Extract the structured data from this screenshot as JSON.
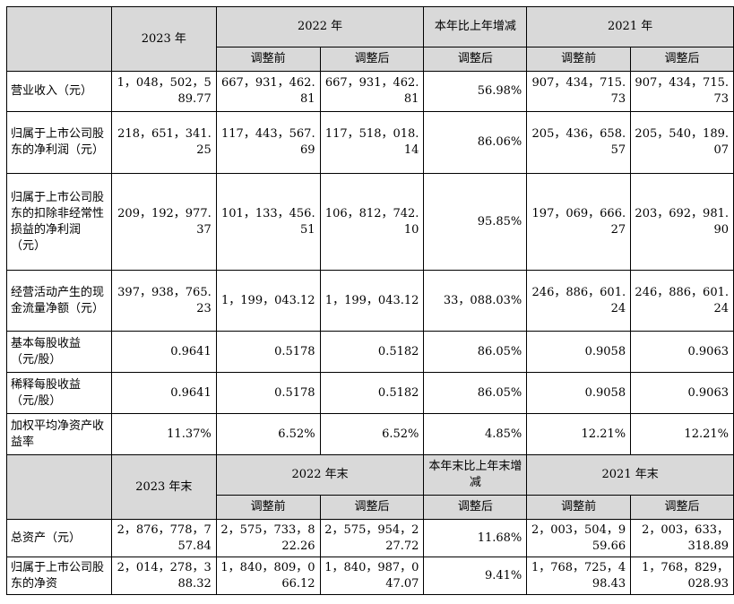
{
  "header1": {
    "y2023": "2023 年",
    "y2022": "2022 年",
    "change": "本年比上年增减",
    "y2021": "2021 年",
    "before": "调整前",
    "after": "调整后",
    "change_after": "调整后"
  },
  "rows1": [
    {
      "label": "营业收入（元）",
      "v2023": "1，048，502，589.77",
      "v2022b": "667，931，462.81",
      "v2022a": "667，931，462.81",
      "chg": "56.98%",
      "v2021b": "907，434，715.73",
      "v2021a": "907，434，715.73"
    },
    {
      "label": "归属于上市公司股东的净利润（元）",
      "v2023": "218，651，341.25",
      "v2022b": "117，443，567.69",
      "v2022a": "117，518，018.14",
      "chg": "86.06%",
      "v2021b": "205，436，658.57",
      "v2021a": "205，540，189.07"
    },
    {
      "label": "归属于上市公司股东的扣除非经常性损益的净利润（元）",
      "v2023": "209，192，977.37",
      "v2022b": "101，133，456.51",
      "v2022a": "106，812，742.10",
      "chg": "95.85%",
      "v2021b": "197，069，666.27",
      "v2021a": "203，692，981.90"
    },
    {
      "label": "经营活动产生的现金流量净额（元）",
      "v2023": "397，938，765.23",
      "v2022b": "1，199，043.12",
      "v2022a": "1，199，043.12",
      "chg": "33，088.03%",
      "v2021b": "246，886，601.24",
      "v2021a": "246，886，601.24"
    },
    {
      "label": "基本每股收益（元/股）",
      "v2023": "0.9641",
      "v2022b": "0.5178",
      "v2022a": "0.5182",
      "chg": "86.05%",
      "v2021b": "0.9058",
      "v2021a": "0.9063"
    },
    {
      "label": "稀释每股收益（元/股）",
      "v2023": "0.9641",
      "v2022b": "0.5178",
      "v2022a": "0.5182",
      "chg": "86.05%",
      "v2021b": "0.9058",
      "v2021a": "0.9063"
    },
    {
      "label": "加权平均净资产收益率",
      "v2023": "11.37%",
      "v2022b": "6.52%",
      "v2022a": "6.52%",
      "chg": "4.85%",
      "v2021b": "12.21%",
      "v2021a": "12.21%"
    }
  ],
  "header2": {
    "y2023": "2023 年末",
    "y2022": "2022 年末",
    "change": "本年末比上年末增减",
    "y2021": "2021 年末",
    "before": "调整前",
    "after": "调整后",
    "change_after": "调整后"
  },
  "rows2": [
    {
      "label": "总资产（元）",
      "v2023": "2，876，778，757.84",
      "v2022b": "2，575，733，822.26",
      "v2022a": "2，575，954，227.72",
      "chg": "11.68%",
      "v2021b": "2，003，504，959.66",
      "v2021a": "2，003，633，318.89"
    },
    {
      "label": "归属于上市公司股东的净资",
      "v2023": "2，014，278，388.32",
      "v2022b": "1，840，809，066.12",
      "v2022a": "1，840，987，047.07",
      "chg": "9.41%",
      "v2021b": "1，768，725，498.43",
      "v2021a": "1，768，829，028.93"
    }
  ]
}
